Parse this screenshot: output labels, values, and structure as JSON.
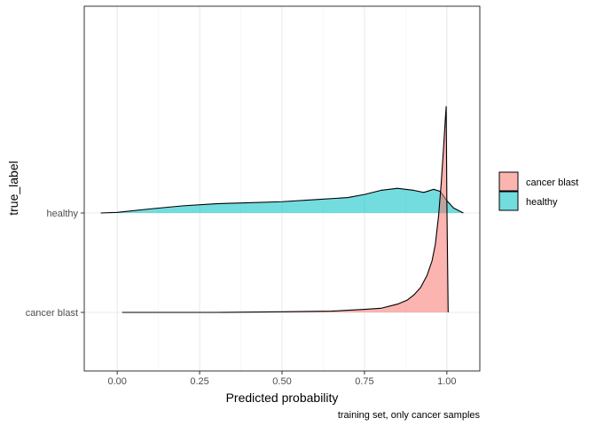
{
  "chart_data": {
    "type": "ridgeline",
    "xlabel": "Predicted probability",
    "ylabel": "true_label",
    "caption": "training set, only cancer samples",
    "xlim": [
      -0.1,
      1.1
    ],
    "x_ticks": [
      0.0,
      0.25,
      0.5,
      0.75,
      1.0
    ],
    "x_tick_labels": [
      "0.00",
      "0.25",
      "0.50",
      "0.75",
      "1.00"
    ],
    "categories": [
      "cancer blast",
      "healthy"
    ],
    "grid": true,
    "legend_position": "right",
    "series": [
      {
        "name": "cancer blast",
        "color": "#F8766D",
        "density": [
          [
            0.015,
            0.0
          ],
          [
            0.3,
            0.0
          ],
          [
            0.5,
            0.003
          ],
          [
            0.65,
            0.006
          ],
          [
            0.75,
            0.015
          ],
          [
            0.8,
            0.02
          ],
          [
            0.85,
            0.04
          ],
          [
            0.88,
            0.06
          ],
          [
            0.9,
            0.085
          ],
          [
            0.92,
            0.12
          ],
          [
            0.94,
            0.18
          ],
          [
            0.955,
            0.25
          ],
          [
            0.965,
            0.33
          ],
          [
            0.975,
            0.47
          ],
          [
            0.983,
            0.63
          ],
          [
            0.99,
            0.8
          ],
          [
            0.995,
            0.93
          ],
          [
            0.998,
            1.0
          ],
          [
            1.0,
            0.55
          ],
          [
            1.004,
            0.0
          ]
        ]
      },
      {
        "name": "healthy",
        "color": "#00BFC4",
        "density": [
          [
            -0.05,
            0.0
          ],
          [
            0.0,
            0.003
          ],
          [
            0.1,
            0.02
          ],
          [
            0.2,
            0.035
          ],
          [
            0.3,
            0.045
          ],
          [
            0.4,
            0.05
          ],
          [
            0.5,
            0.055
          ],
          [
            0.6,
            0.065
          ],
          [
            0.7,
            0.075
          ],
          [
            0.75,
            0.09
          ],
          [
            0.8,
            0.11
          ],
          [
            0.85,
            0.12
          ],
          [
            0.9,
            0.11
          ],
          [
            0.93,
            0.1
          ],
          [
            0.96,
            0.115
          ],
          [
            0.98,
            0.105
          ],
          [
            1.0,
            0.06
          ],
          [
            1.02,
            0.025
          ],
          [
            1.05,
            0.0
          ]
        ]
      }
    ]
  }
}
